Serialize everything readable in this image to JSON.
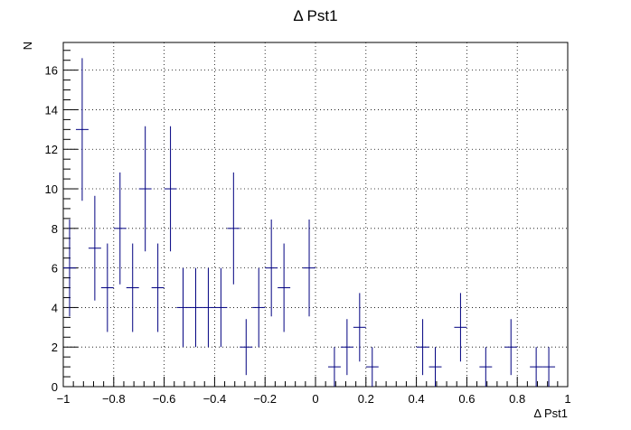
{
  "chart_data": {
    "type": "scatter",
    "title": "Δ Pst1",
    "xlabel": "Δ Pst1",
    "ylabel": "N",
    "xlim": [
      -1,
      1
    ],
    "ylim": [
      0,
      17.4
    ],
    "grid": true,
    "bin_width": 0.05,
    "x_ticks": [
      -1,
      -0.8,
      -0.6,
      -0.4,
      -0.2,
      0,
      0.2,
      0.4,
      0.6,
      0.8,
      1
    ],
    "x_tick_labels": [
      "−1",
      "−0.8",
      "−0.6",
      "−0.4",
      "−0.2",
      "0",
      "0.2",
      "0.4",
      "0.6",
      "0.8",
      "1"
    ],
    "y_ticks": [
      0,
      2,
      4,
      6,
      8,
      10,
      12,
      14,
      16
    ],
    "y_tick_labels": [
      "0",
      "2",
      "4",
      "6",
      "8",
      "10",
      "12",
      "14",
      "16"
    ],
    "color": "#000080",
    "series": [
      {
        "x": [
          -0.975,
          -0.925,
          -0.875,
          -0.825,
          -0.775,
          -0.725,
          -0.675,
          -0.625,
          -0.575,
          -0.525,
          -0.475,
          -0.425,
          -0.375,
          -0.325,
          -0.275,
          -0.225,
          -0.175,
          -0.125,
          -0.025,
          0.075,
          0.125,
          0.175,
          0.225,
          0.425,
          0.475,
          0.575,
          0.675,
          0.775,
          0.875,
          0.925
        ],
        "values": [
          6,
          13,
          7,
          5,
          8,
          5,
          10,
          5,
          10,
          4,
          4,
          4,
          4,
          8,
          2,
          4,
          6,
          5,
          6,
          1,
          2,
          3,
          1,
          2,
          1,
          3,
          1,
          2,
          1,
          1
        ]
      }
    ]
  }
}
